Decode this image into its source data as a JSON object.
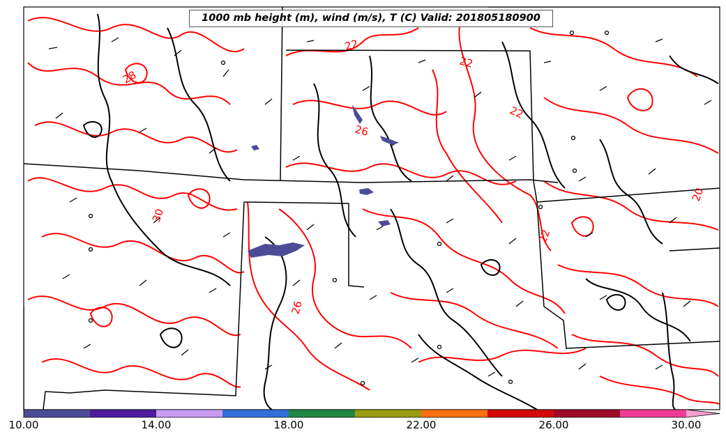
{
  "title": "1000 mb height (m), wind (m/s), T (C) Valid: 201805180900",
  "contour_labels": [
    "22",
    "22",
    "28",
    "22",
    "26",
    "30",
    "26",
    "20",
    "22"
  ],
  "colorbar": {
    "ticks": [
      "10.00",
      "14.00",
      "18.00",
      "22.00",
      "26.00",
      "30.00"
    ],
    "colors": [
      "#4c4c96",
      "#4f1b9c",
      "#c99cf2",
      "#3070d8",
      "#1f8844",
      "#9c9c14",
      "#fa7014",
      "#d20a0a",
      "#a00a28",
      "#f03c96",
      "#f4a0cc"
    ]
  },
  "styles": {
    "temperature_contour": "#ff0000",
    "height_contour": "#000000",
    "shading": "#4c4c96"
  }
}
